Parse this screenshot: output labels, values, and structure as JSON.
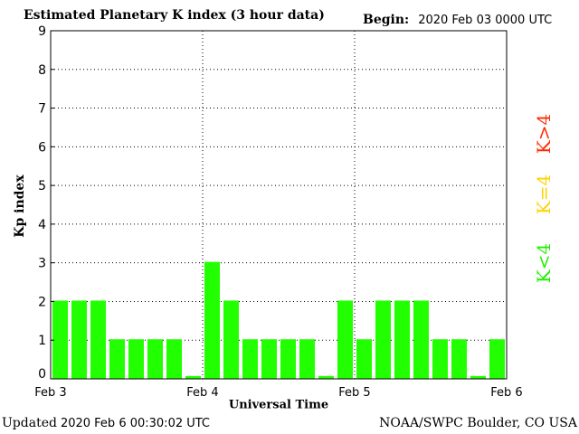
{
  "header": {
    "title": "Estimated Planetary K index (3 hour data)",
    "begin_label": "Begin:",
    "begin_value": "2020 Feb 03 0000 UTC"
  },
  "footer": {
    "updated_label": "Updated",
    "updated_value": "2020 Feb  6 00:30:02 UTC",
    "source": "NOAA/SWPC Boulder, CO USA"
  },
  "legend": {
    "high": {
      "label": "K>4",
      "color": "#ff2a00"
    },
    "mid": {
      "label": "K=4",
      "color": "#ffd200"
    },
    "low": {
      "label": "K<4",
      "color": "#22ee00"
    }
  },
  "chart_data": {
    "type": "bar",
    "xlabel": "Universal Time",
    "ylabel": "Kp index",
    "ylim": [
      0,
      9
    ],
    "yticks": [
      "0",
      "1",
      "2",
      "3",
      "4",
      "5",
      "6",
      "7",
      "8",
      "9"
    ],
    "xticks": [
      "Feb 3",
      "Feb 4",
      "Feb 5",
      "Feb 6"
    ],
    "grid": "dotted",
    "bar_color": "#22ff00",
    "values": [
      2,
      2,
      2,
      1,
      1,
      1,
      1,
      0.05,
      3,
      2,
      1,
      1,
      1,
      1,
      0.05,
      2,
      1,
      2,
      2,
      2,
      1,
      1,
      0.05,
      1
    ]
  }
}
